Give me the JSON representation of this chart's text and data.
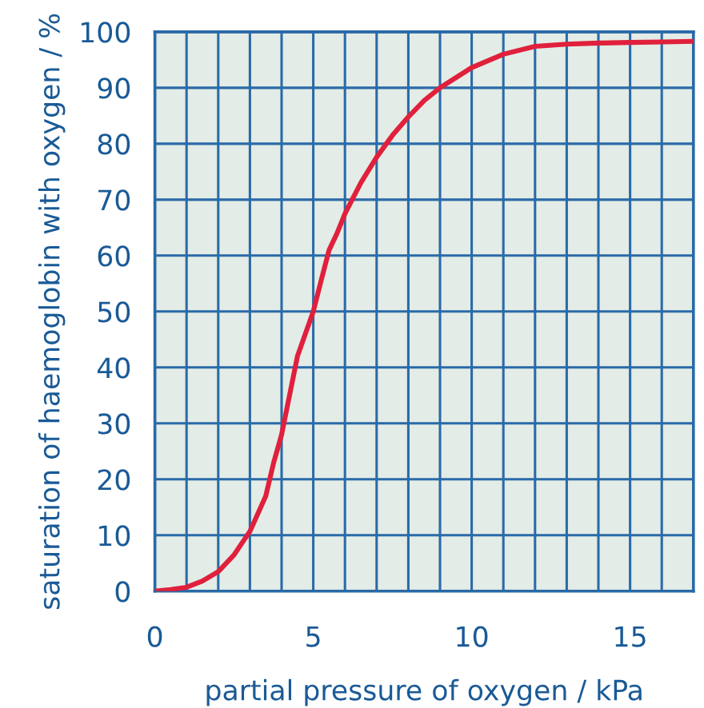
{
  "chart_data": {
    "type": "line",
    "xlabel": "partial pressure of oxygen / kPa",
    "ylabel": "saturation of haemoglobin with oxygen / %",
    "x": [
      0,
      0.5,
      1,
      1.5,
      2,
      2.5,
      3,
      3.5,
      3.75,
      4,
      4.25,
      4.5,
      4.75,
      5,
      5.25,
      5.5,
      5.75,
      6,
      6.5,
      7,
      7.5,
      8,
      8.5,
      9,
      10,
      11,
      12,
      13,
      14,
      15,
      16,
      17
    ],
    "series": [
      {
        "color": "#e0203c",
        "values": [
          0,
          0.3,
          0.7,
          1.8,
          3.5,
          6.5,
          10.7,
          17,
          23,
          28,
          35,
          42,
          46,
          50,
          55.6,
          61,
          64,
          67.5,
          73,
          77.6,
          81.5,
          84.8,
          87.7,
          90,
          93.6,
          96,
          97.4,
          97.8,
          98,
          98.1,
          98.2,
          98.3
        ]
      }
    ],
    "xlim": [
      0,
      17
    ],
    "ylim": [
      0,
      100
    ],
    "xticks": [
      0,
      {
        "value": 1,
        "label": null
      },
      {
        "value": 2,
        "label": null
      },
      {
        "value": 3,
        "label": null
      },
      {
        "value": 4,
        "label": null
      },
      5,
      {
        "value": 6,
        "label": null
      },
      {
        "value": 7,
        "label": null
      },
      {
        "value": 8,
        "label": null
      },
      {
        "value": 9,
        "label": null
      },
      10,
      {
        "value": 11,
        "label": null
      },
      {
        "value": 12,
        "label": null
      },
      {
        "value": 13,
        "label": null
      },
      {
        "value": 14,
        "label": null
      },
      15,
      {
        "value": 16,
        "label": null
      },
      {
        "value": 17,
        "label": null
      }
    ],
    "yticks": [
      0,
      10,
      20,
      30,
      40,
      50,
      60,
      70,
      80,
      90,
      100
    ],
    "grid": true,
    "marker": "none",
    "line_style": "solid"
  }
}
